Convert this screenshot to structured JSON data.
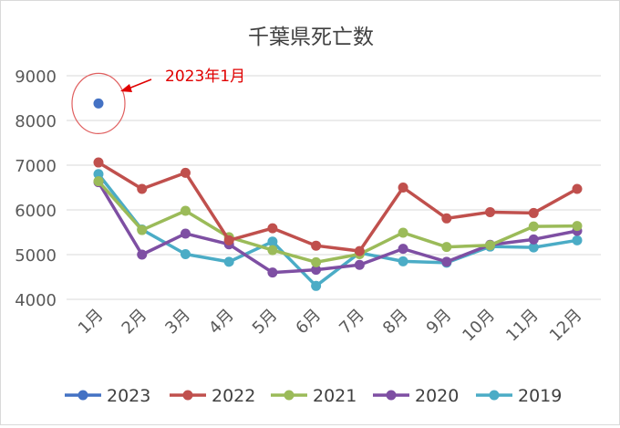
{
  "chart_data": {
    "type": "line",
    "title": "千葉県死亡数",
    "categories": [
      "1月",
      "2月",
      "3月",
      "4月",
      "5月",
      "6月",
      "7月",
      "8月",
      "9月",
      "10月",
      "11月",
      "12月"
    ],
    "yticks": [
      "4000",
      "5000",
      "6000",
      "7000",
      "8000",
      "9000"
    ],
    "ylim": [
      4000,
      9000
    ],
    "grid": true,
    "legend_position": "bottom",
    "series": [
      {
        "name": "2023",
        "color": "#4472C4",
        "values": [
          8380,
          null,
          null,
          null,
          null,
          null,
          null,
          null,
          null,
          null,
          null,
          null
        ]
      },
      {
        "name": "2022",
        "color": "#C0504D",
        "values": [
          7060,
          6470,
          6830,
          5320,
          5590,
          5200,
          5080,
          6500,
          5810,
          5950,
          5930,
          6470
        ]
      },
      {
        "name": "2021",
        "color": "#9BBB59",
        "values": [
          6640,
          5550,
          5980,
          5390,
          5100,
          4830,
          5010,
          5490,
          5170,
          5210,
          5630,
          5640
        ]
      },
      {
        "name": "2020",
        "color": "#7E4FA3",
        "values": [
          6620,
          5000,
          5470,
          5230,
          4600,
          4660,
          4770,
          5130,
          4840,
          5220,
          5340,
          5530
        ]
      },
      {
        "name": "2019",
        "color": "#4BACC6",
        "values": [
          6800,
          5560,
          5010,
          4840,
          5290,
          4300,
          5040,
          4850,
          4820,
          5180,
          5160,
          5320
        ]
      }
    ],
    "annotation": {
      "text": "2023年1月",
      "color": "#E00000"
    }
  }
}
